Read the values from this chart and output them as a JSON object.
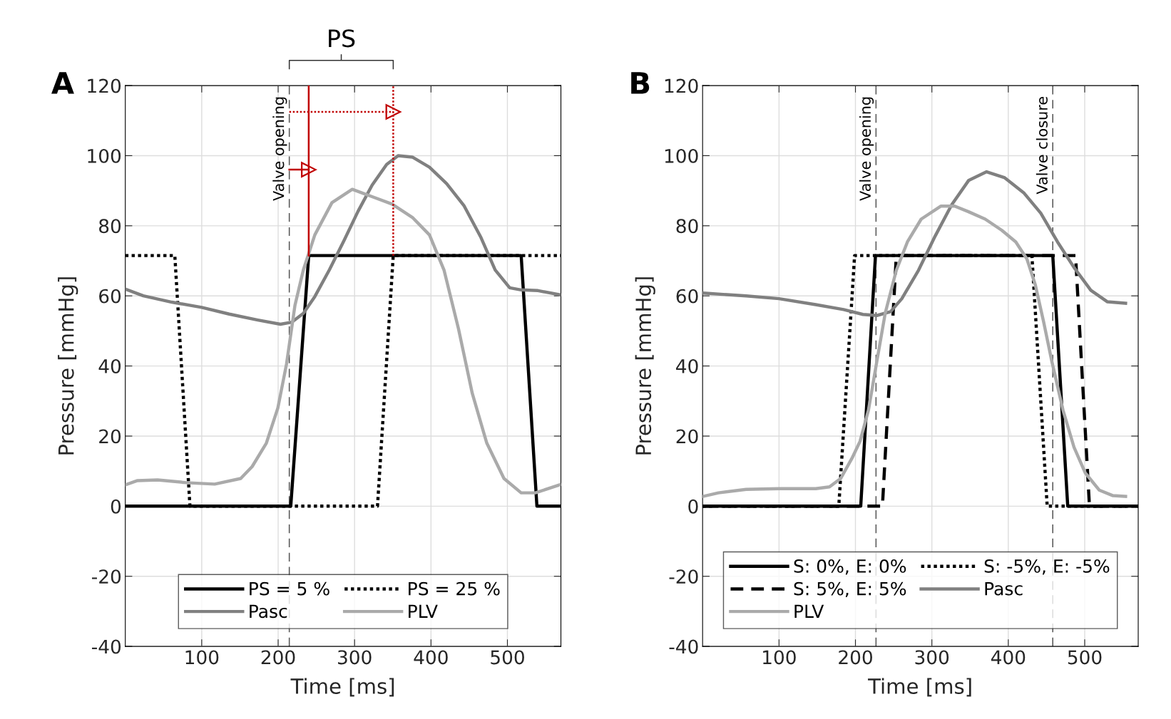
{
  "chart_data": [
    {
      "type": "line",
      "title": "A",
      "xlabel": "Time [ms]",
      "ylabel": "Pressure [mmHg]",
      "xlim": [
        0,
        570
      ],
      "xticks": [
        100,
        200,
        300,
        400,
        500
      ],
      "ylim": [
        -40,
        120
      ],
      "yticks": [
        -40,
        -20,
        0,
        20,
        40,
        60,
        80,
        100,
        120
      ],
      "grid": true,
      "legend": "bottom",
      "annotations": [
        "PS"
      ],
      "ref_lines": [
        {
          "axis": "x",
          "value": 214.6,
          "label": "Valve opening",
          "color": "#555555",
          "line_style": "dashed"
        }
      ],
      "series": [
        {
          "name": "PS = 5 %",
          "color": "#000000",
          "line_style": "solid",
          "x": [
            0,
            216.5,
            240,
            518,
            538.6,
            570
          ],
          "values": [
            0,
            0,
            71.5,
            71.5,
            0,
            0
          ]
        },
        {
          "name": "PS = 25 %",
          "color": "#000000",
          "line_style": "dotted",
          "x": [
            0,
            64.8,
            84.6,
            330,
            350.6,
            570
          ],
          "values": [
            71.5,
            71.5,
            0,
            0,
            71.5,
            71.5
          ]
        },
        {
          "name": "Pasc",
          "color": "#808080",
          "line_style": "solid",
          "x": [
            0.4,
            23.6,
            61,
            100,
            136,
            173.4,
            203,
            218,
            233,
            248,
            267,
            286,
            304.5,
            323,
            342,
            357,
            375.6,
            398,
            420.6,
            443,
            465.5,
            484,
            503,
            518,
            540,
            568.5
          ],
          "values": [
            61.9,
            60,
            58.2,
            56.7,
            54.8,
            53.1,
            51.9,
            52.5,
            55,
            59.8,
            67.4,
            75.7,
            84.1,
            91.6,
            97.5,
            100,
            99.6,
            96.7,
            92,
            85.8,
            76.6,
            67.4,
            62.3,
            61.7,
            61.5,
            60.3
          ]
        },
        {
          "name": "PLV",
          "color": "#aaaaaa",
          "line_style": "solid",
          "x": [
            0.4,
            16,
            42.3,
            80,
            117,
            151,
            166,
            184.6,
            199.6,
            211,
            222,
            233,
            248,
            270.4,
            297,
            323,
            349,
            375.6,
            398,
            417,
            436,
            454,
            473,
            495.5,
            518,
            536.7,
            568.5
          ],
          "values": [
            6.1,
            7.3,
            7.5,
            6.7,
            6.3,
            7.9,
            11.3,
            18,
            28,
            40.6,
            57.3,
            67.4,
            77.4,
            86.6,
            90.4,
            88.3,
            86.2,
            82.4,
            77.4,
            67.4,
            50.6,
            32.2,
            18,
            7.9,
            3.8,
            3.8,
            6.1
          ]
        },
        {
          "color": "#c00000",
          "line_style": "solid",
          "x": [
            240,
            240
          ],
          "values": [
            71.5,
            120
          ]
        },
        {
          "color": "#c00000",
          "line_style": "dotted",
          "x": [
            350.6,
            350.6
          ],
          "values": [
            71.5,
            120
          ]
        },
        {
          "color": "#c00000",
          "line_style": "solid",
          "marker": "triangle",
          "x": [
            214.6,
            240
          ],
          "values": [
            96,
            96
          ]
        },
        {
          "color": "#c00000",
          "line_style": "dotted",
          "marker": "triangle",
          "x": [
            214.6,
            350.6
          ],
          "values": [
            112.5,
            112.5
          ]
        }
      ]
    },
    {
      "type": "line",
      "title": "B",
      "xlabel": "Time [ms]",
      "ylabel": "Pressure [mmHg]",
      "xlim": [
        0,
        570
      ],
      "xticks": [
        100,
        200,
        300,
        400,
        500
      ],
      "ylim": [
        -40,
        120
      ],
      "yticks": [
        -40,
        -20,
        0,
        20,
        40,
        60,
        80,
        100,
        120
      ],
      "grid": true,
      "legend": "bottom",
      "ref_lines": [
        {
          "axis": "x",
          "value": 226.9,
          "label": "Valve opening",
          "color": "#555555",
          "line_style": "dashed"
        },
        {
          "axis": "x",
          "value": 458.2,
          "label": "Valve closure",
          "color": "#555555",
          "line_style": "dashed"
        }
      ],
      "series": [
        {
          "name": "S: 0%, E: 0%",
          "color": "#000000",
          "line_style": "solid",
          "x": [
            0,
            206.9,
            226.2,
            458.2,
            477.8,
            570
          ],
          "values": [
            0,
            0,
            71.5,
            71.5,
            0,
            0
          ]
        },
        {
          "name": "S: -5%, E: -5%",
          "color": "#000000",
          "line_style": "dotted",
          "x": [
            0,
            178.2,
            198.9,
            430.9,
            450.9,
            570
          ],
          "values": [
            0,
            0,
            71.5,
            71.5,
            0,
            0
          ]
        },
        {
          "name": "S: 5%, E: 5%",
          "color": "#000000",
          "line_style": "dashed",
          "x": [
            0,
            235.3,
            253.5,
            488,
            506.2,
            570
          ],
          "values": [
            0,
            0,
            71.5,
            71.5,
            0,
            0
          ]
        },
        {
          "name": "Pasc",
          "color": "#808080",
          "line_style": "solid",
          "x": [
            0.7,
            57,
            100,
            148,
            184.4,
            209.8,
            228,
            246,
            260.7,
            282.5,
            304.4,
            326,
            348,
            371.6,
            395.3,
            420.7,
            442.5,
            464.4,
            486,
            508,
            529.8,
            553.5
          ],
          "values": [
            60.8,
            60,
            59.2,
            57.5,
            56.1,
            54.7,
            54.4,
            55.5,
            59.2,
            67.3,
            77.1,
            86,
            92.9,
            95.4,
            93.7,
            89.3,
            83.6,
            75.4,
            68.1,
            61.6,
            58.3,
            57.9
          ]
        },
        {
          "name": "PLV",
          "color": "#aaaaaa",
          "line_style": "solid",
          "x": [
            0.7,
            20.7,
            57,
            100,
            148,
            166,
            180.7,
            195.3,
            206,
            217,
            228,
            239,
            253.5,
            268,
            286,
            311.6,
            329.8,
            348,
            369.8,
            391.6,
            409.8,
            424.4,
            435.3,
            446.2,
            457,
            471.6,
            486,
            500.7,
            518.9,
            537,
            553.5
          ],
          "values": [
            2.8,
            3.8,
            4.8,
            5,
            5,
            5.5,
            7.9,
            13.6,
            18.5,
            27.4,
            41.3,
            55.1,
            67.3,
            75.4,
            81.9,
            85.6,
            85.6,
            84,
            81.9,
            78.7,
            75.4,
            70.5,
            63.2,
            52.6,
            41.3,
            27.4,
            16.8,
            9.5,
            4.6,
            3,
            2.8
          ]
        }
      ]
    }
  ]
}
